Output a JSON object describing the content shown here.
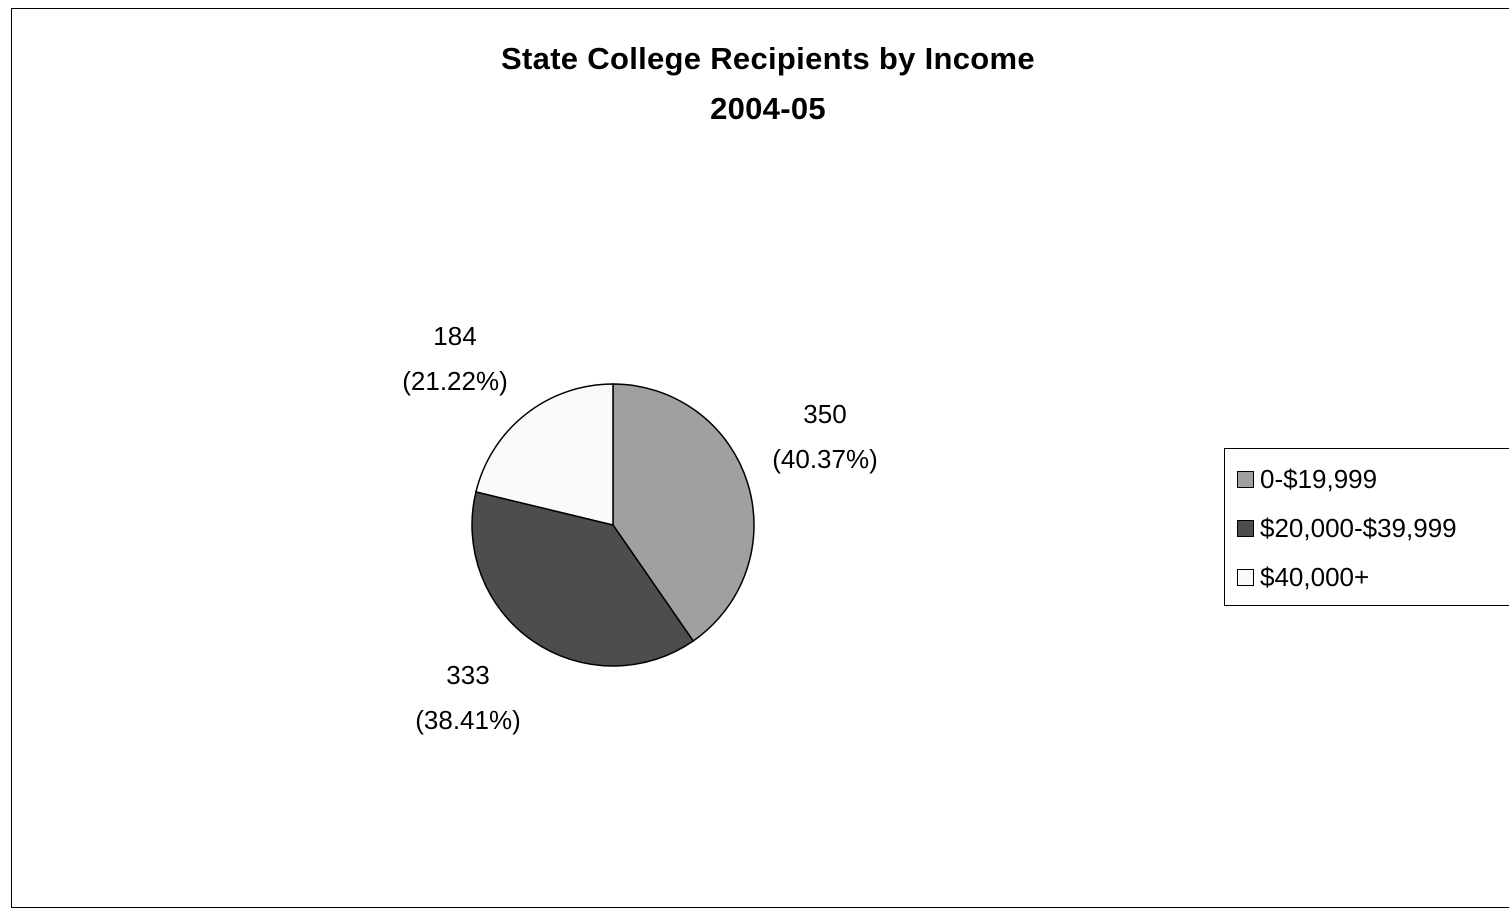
{
  "chart_data": {
    "type": "pie",
    "title": "State College Recipients by Income",
    "subtitle": "2004-05",
    "categories": [
      "0-$19,999",
      "$20,000-$39,999",
      "$40,000+"
    ],
    "values": [
      350,
      333,
      184
    ],
    "percent_labels": [
      "(40.37%)",
      "(38.41%)",
      "(21.22%)"
    ],
    "value_labels": [
      "350",
      "333",
      "184"
    ],
    "colors": [
      "#a0a0a0",
      "#4d4d4d",
      "#fafafa"
    ],
    "legend_position": "right"
  }
}
